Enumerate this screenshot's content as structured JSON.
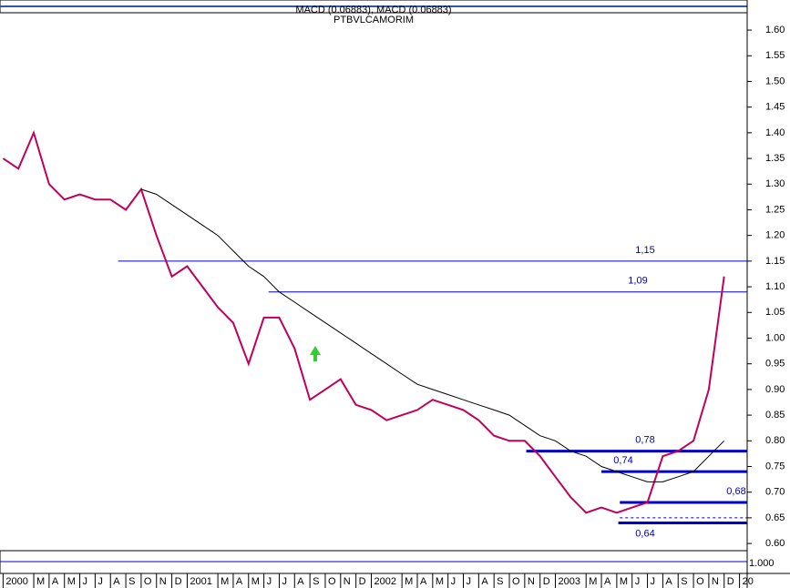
{
  "chart_data": {
    "type": "line",
    "header": [
      "MACD (0.06883), MACD (0.06883)",
      "PTBVLCAMORIM"
    ],
    "x": [
      0,
      1,
      2,
      3,
      4,
      5,
      6,
      7,
      8,
      9,
      10,
      11,
      12,
      13,
      14,
      15,
      16,
      17,
      18,
      19,
      20,
      21,
      22,
      23,
      24,
      25,
      26,
      27,
      28,
      29,
      30,
      31,
      32,
      33,
      34,
      35,
      36,
      37,
      38,
      39,
      40,
      41,
      42,
      43,
      44,
      45,
      46,
      47
    ],
    "series": [
      {
        "color": "#c0005a",
        "values": [
          1.35,
          1.33,
          1.4,
          1.3,
          1.27,
          1.28,
          1.27,
          1.27,
          1.25,
          1.29,
          1.2,
          1.12,
          1.14,
          1.1,
          1.06,
          1.03,
          0.95,
          1.04,
          1.04,
          0.98,
          0.88,
          0.9,
          0.92,
          0.87,
          0.86,
          0.84,
          0.85,
          0.86,
          0.88,
          0.87,
          0.86,
          0.84,
          0.81,
          0.8,
          0.8,
          0.77,
          0.73,
          0.69,
          0.66,
          0.67,
          0.66,
          0.67,
          0.68,
          0.77,
          0.78,
          0.8,
          0.9,
          1.12
        ]
      },
      {
        "color": "#000000",
        "values": [
          null,
          null,
          null,
          null,
          null,
          null,
          null,
          null,
          null,
          1.29,
          1.28,
          1.26,
          1.24,
          1.22,
          1.2,
          1.17,
          1.14,
          1.12,
          1.09,
          1.07,
          1.05,
          1.03,
          1.01,
          0.99,
          0.97,
          0.95,
          0.93,
          0.91,
          0.9,
          0.89,
          0.88,
          0.87,
          0.86,
          0.85,
          0.83,
          0.81,
          0.8,
          0.78,
          0.77,
          0.75,
          0.74,
          0.73,
          0.72,
          0.72,
          0.73,
          0.74,
          0.77,
          0.8
        ]
      }
    ],
    "levels": [
      {
        "value": 1.15,
        "label": "1,15",
        "x0": 7.5,
        "thick": false
      },
      {
        "value": 1.09,
        "label": "1,09",
        "x0": 17.3,
        "thick": false
      },
      {
        "value": 0.78,
        "label": "0,78",
        "x0": 34.1,
        "thick": true
      },
      {
        "value": 0.74,
        "label": "0,74",
        "x0": 39.0,
        "thick": true
      },
      {
        "value": 0.68,
        "label": "0,68",
        "x0": 40.2,
        "thick": true
      },
      {
        "value": 0.64,
        "label": "0,64",
        "x0": 40.1,
        "thick": true
      }
    ],
    "dashed_level": {
      "value": 0.65,
      "x0": 40.2
    },
    "xlim": [
      -0.2,
      48.5
    ],
    "ylim": [
      0.586,
      1.632
    ],
    "xticks": [
      {
        "value": 0,
        "label": "2000"
      },
      {
        "value": 2,
        "label": "M"
      },
      {
        "value": 3,
        "label": "A"
      },
      {
        "value": 4,
        "label": "M"
      },
      {
        "value": 5,
        "label": "J"
      },
      {
        "value": 6,
        "label": "J"
      },
      {
        "value": 7,
        "label": "A"
      },
      {
        "value": 8,
        "label": "S"
      },
      {
        "value": 9,
        "label": "O"
      },
      {
        "value": 10,
        "label": "N"
      },
      {
        "value": 11,
        "label": "D"
      },
      {
        "value": 12,
        "label": "2001"
      },
      {
        "value": 14,
        "label": "M"
      },
      {
        "value": 15,
        "label": "A"
      },
      {
        "value": 16,
        "label": "M"
      },
      {
        "value": 17,
        "label": "J"
      },
      {
        "value": 18,
        "label": "J"
      },
      {
        "value": 19,
        "label": "A"
      },
      {
        "value": 20,
        "label": "S"
      },
      {
        "value": 21,
        "label": "O"
      },
      {
        "value": 22,
        "label": "N"
      },
      {
        "value": 23,
        "label": "D"
      },
      {
        "value": 24,
        "label": "2002"
      },
      {
        "value": 26,
        "label": "M"
      },
      {
        "value": 27,
        "label": "A"
      },
      {
        "value": 28,
        "label": "M"
      },
      {
        "value": 29,
        "label": "J"
      },
      {
        "value": 30,
        "label": "J"
      },
      {
        "value": 31,
        "label": "A"
      },
      {
        "value": 32,
        "label": "S"
      },
      {
        "value": 33,
        "label": "O"
      },
      {
        "value": 34,
        "label": "N"
      },
      {
        "value": 35,
        "label": "D"
      },
      {
        "value": 36,
        "label": "2003"
      },
      {
        "value": 38,
        "label": "M"
      },
      {
        "value": 39,
        "label": "A"
      },
      {
        "value": 40,
        "label": "M"
      },
      {
        "value": 41,
        "label": "J"
      },
      {
        "value": 42,
        "label": "J"
      },
      {
        "value": 43,
        "label": "A"
      },
      {
        "value": 44,
        "label": "S"
      },
      {
        "value": 45,
        "label": "O"
      },
      {
        "value": 46,
        "label": "N"
      },
      {
        "value": 47,
        "label": "D"
      },
      {
        "value": 48,
        "label": "20"
      }
    ],
    "yticks": [
      {
        "value": 0.6,
        "label": "0.60"
      },
      {
        "value": 0.65,
        "label": "0.65"
      },
      {
        "value": 0.7,
        "label": "0.70"
      },
      {
        "value": 0.75,
        "label": "0.75"
      },
      {
        "value": 0.8,
        "label": "0.80"
      },
      {
        "value": 0.85,
        "label": "0.85"
      },
      {
        "value": 0.9,
        "label": "0.90"
      },
      {
        "value": 0.95,
        "label": "0.95"
      },
      {
        "value": 1.0,
        "label": "1.00"
      },
      {
        "value": 1.05,
        "label": "1.05"
      },
      {
        "value": 1.1,
        "label": "1.10"
      },
      {
        "value": 1.15,
        "label": "1.15"
      },
      {
        "value": 1.2,
        "label": "1.20"
      },
      {
        "value": 1.25,
        "label": "1.25"
      },
      {
        "value": 1.3,
        "label": "1.30"
      },
      {
        "value": 1.35,
        "label": "1.35"
      },
      {
        "value": 1.4,
        "label": "1.40"
      },
      {
        "value": 1.45,
        "label": "1.45"
      },
      {
        "value": 1.5,
        "label": "1.50"
      },
      {
        "value": 1.55,
        "label": "1.55"
      },
      {
        "value": 1.6,
        "label": "1.60"
      }
    ],
    "osc_label": "1.000",
    "level_color": "#0000cc"
  }
}
